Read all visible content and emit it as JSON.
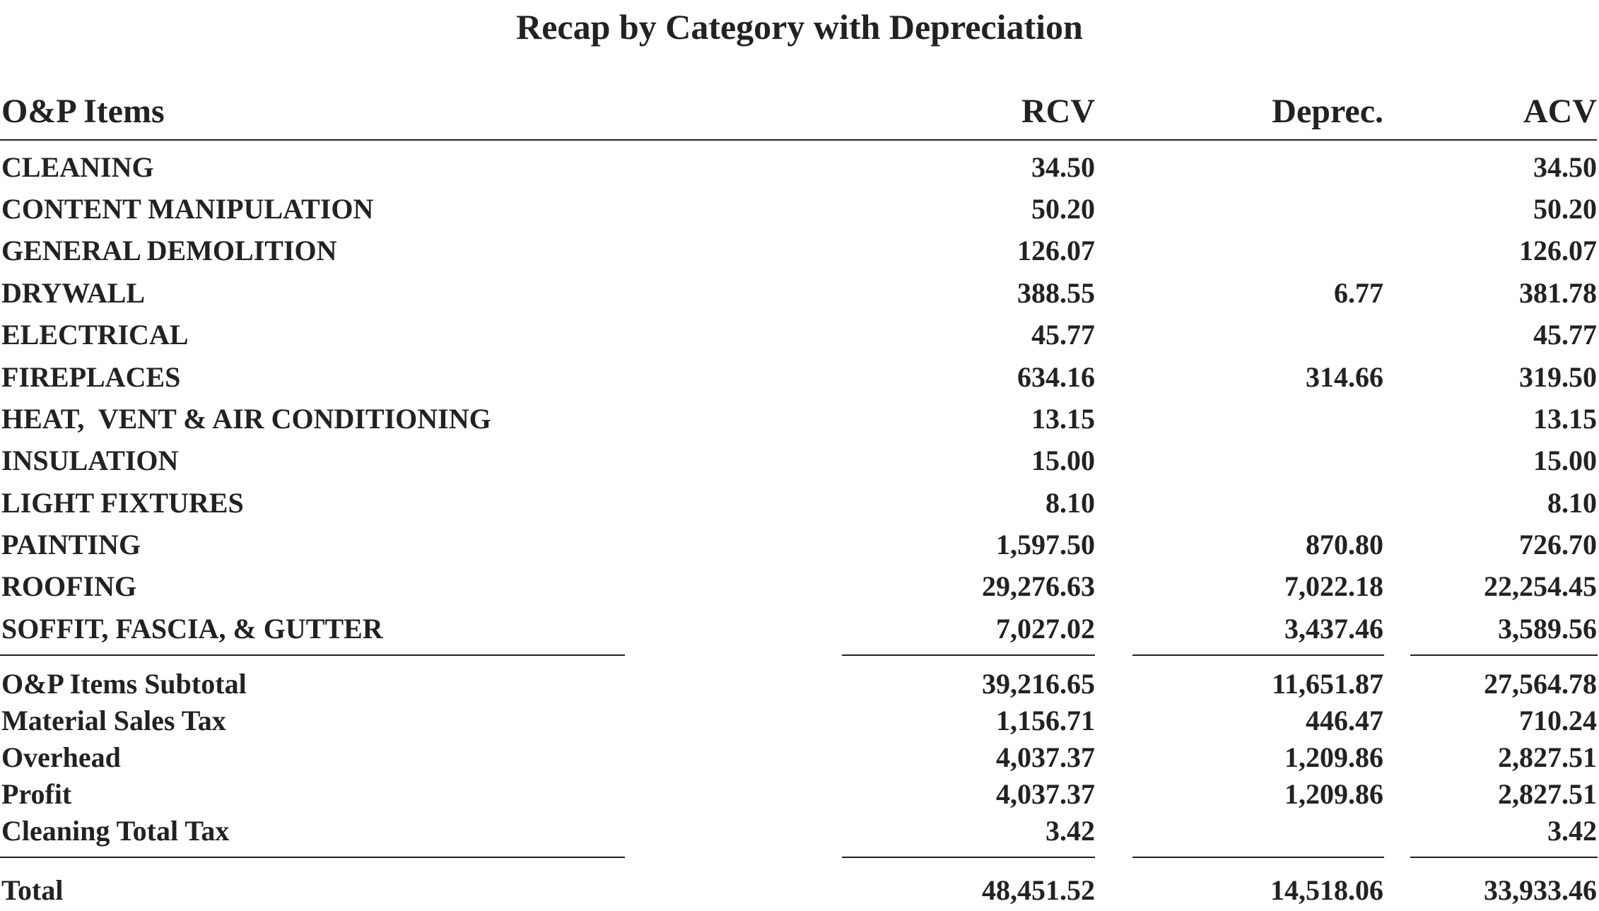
{
  "title": "Recap by Category with Depreciation",
  "columns": {
    "label": "O&P Items",
    "rcv": "RCV",
    "deprec": "Deprec.",
    "acv": "ACV"
  },
  "items": [
    {
      "label": "CLEANING",
      "rcv": "34.50",
      "deprec": "",
      "acv": "34.50"
    },
    {
      "label": "CONTENT MANIPULATION",
      "rcv": "50.20",
      "deprec": "",
      "acv": "50.20"
    },
    {
      "label": "GENERAL DEMOLITION",
      "rcv": "126.07",
      "deprec": "",
      "acv": "126.07"
    },
    {
      "label": "DRYWALL",
      "rcv": "388.55",
      "deprec": "6.77",
      "acv": "381.78"
    },
    {
      "label": "ELECTRICAL",
      "rcv": "45.77",
      "deprec": "",
      "acv": "45.77"
    },
    {
      "label": "FIREPLACES",
      "rcv": "634.16",
      "deprec": "314.66",
      "acv": "319.50"
    },
    {
      "label": "HEAT,  VENT & AIR CONDITIONING",
      "rcv": "13.15",
      "deprec": "",
      "acv": "13.15"
    },
    {
      "label": "INSULATION",
      "rcv": "15.00",
      "deprec": "",
      "acv": "15.00"
    },
    {
      "label": "LIGHT FIXTURES",
      "rcv": "8.10",
      "deprec": "",
      "acv": "8.10"
    },
    {
      "label": "PAINTING",
      "rcv": "1,597.50",
      "deprec": "870.80",
      "acv": "726.70"
    },
    {
      "label": "ROOFING",
      "rcv": "29,276.63",
      "deprec": "7,022.18",
      "acv": "22,254.45"
    },
    {
      "label": "SOFFIT, FASCIA, & GUTTER",
      "rcv": "7,027.02",
      "deprec": "3,437.46",
      "acv": "3,589.56"
    }
  ],
  "summary": [
    {
      "label": "O&P Items Subtotal",
      "rcv": "39,216.65",
      "deprec": "11,651.87",
      "acv": "27,564.78"
    },
    {
      "label": "Material Sales Tax",
      "rcv": "1,156.71",
      "deprec": "446.47",
      "acv": "710.24"
    },
    {
      "label": "Overhead",
      "rcv": "4,037.37",
      "deprec": "1,209.86",
      "acv": "2,827.51"
    },
    {
      "label": "Profit",
      "rcv": "4,037.37",
      "deprec": "1,209.86",
      "acv": "2,827.51"
    },
    {
      "label": "Cleaning Total Tax",
      "rcv": "3.42",
      "deprec": "",
      "acv": "3.42"
    }
  ],
  "total": {
    "label": "Total",
    "rcv": "48,451.52",
    "deprec": "14,518.06",
    "acv": "33,933.46"
  }
}
